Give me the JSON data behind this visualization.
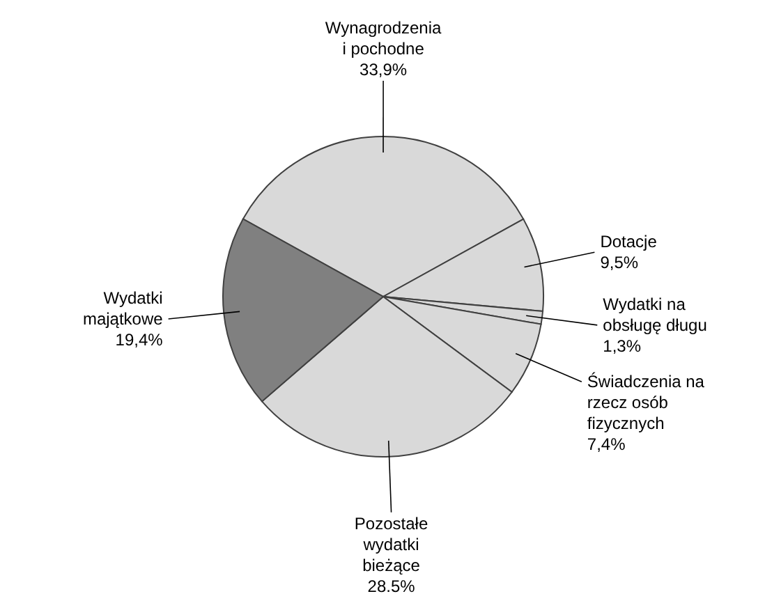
{
  "chart_data": {
    "type": "pie",
    "categories": [
      "Wynagrodzenia i pochodne",
      "Dotacje",
      "Wydatki na obsługę długu",
      "Świadczenia na rzecz osób fizycznych",
      "Pozostałe wydatki bieżące",
      "Wydatki majątkowe"
    ],
    "values": [
      33.9,
      9.5,
      1.3,
      7.4,
      28.5,
      19.4
    ],
    "colors": [
      "#d9d9d9",
      "#d9d9d9",
      "#d9d9d9",
      "#d9d9d9",
      "#d9d9d9",
      "#808080"
    ],
    "value_labels": [
      "33,9%",
      "9,5%",
      "1,3%",
      "7,4%",
      "28.5%",
      "19,4%"
    ]
  }
}
